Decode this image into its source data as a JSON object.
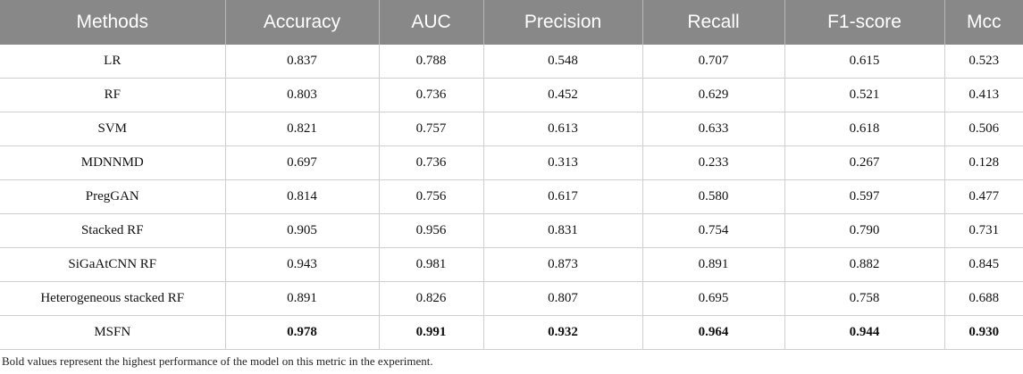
{
  "table": {
    "headers": [
      "Methods",
      "Accuracy",
      "AUC",
      "Precision",
      "Recall",
      "F1-score",
      "Mcc"
    ],
    "rows": [
      {
        "method": "LR",
        "values": [
          "0.837",
          "0.788",
          "0.548",
          "0.707",
          "0.615",
          "0.523"
        ],
        "bold": false
      },
      {
        "method": "RF",
        "values": [
          "0.803",
          "0.736",
          "0.452",
          "0.629",
          "0.521",
          "0.413"
        ],
        "bold": false
      },
      {
        "method": "SVM",
        "values": [
          "0.821",
          "0.757",
          "0.613",
          "0.633",
          "0.618",
          "0.506"
        ],
        "bold": false
      },
      {
        "method": "MDNNMD",
        "values": [
          "0.697",
          "0.736",
          "0.313",
          "0.233",
          "0.267",
          "0.128"
        ],
        "bold": false
      },
      {
        "method": "PregGAN",
        "values": [
          "0.814",
          "0.756",
          "0.617",
          "0.580",
          "0.597",
          "0.477"
        ],
        "bold": false
      },
      {
        "method": "Stacked RF",
        "values": [
          "0.905",
          "0.956",
          "0.831",
          "0.754",
          "0.790",
          "0.731"
        ],
        "bold": false
      },
      {
        "method": "SiGaAtCNN RF",
        "values": [
          "0.943",
          "0.981",
          "0.873",
          "0.891",
          "0.882",
          "0.845"
        ],
        "bold": false
      },
      {
        "method": "Heterogeneous stacked RF",
        "values": [
          "0.891",
          "0.826",
          "0.807",
          "0.695",
          "0.758",
          "0.688"
        ],
        "bold": false
      },
      {
        "method": "MSFN",
        "values": [
          "0.978",
          "0.991",
          "0.932",
          "0.964",
          "0.944",
          "0.930"
        ],
        "bold": true
      }
    ]
  },
  "footnote": "Bold values represent the highest performance of the model on this metric in the experiment.",
  "colors": {
    "header_bg": "#888888",
    "header_text": "#ffffff",
    "grid_line": "#cfcfcf"
  }
}
